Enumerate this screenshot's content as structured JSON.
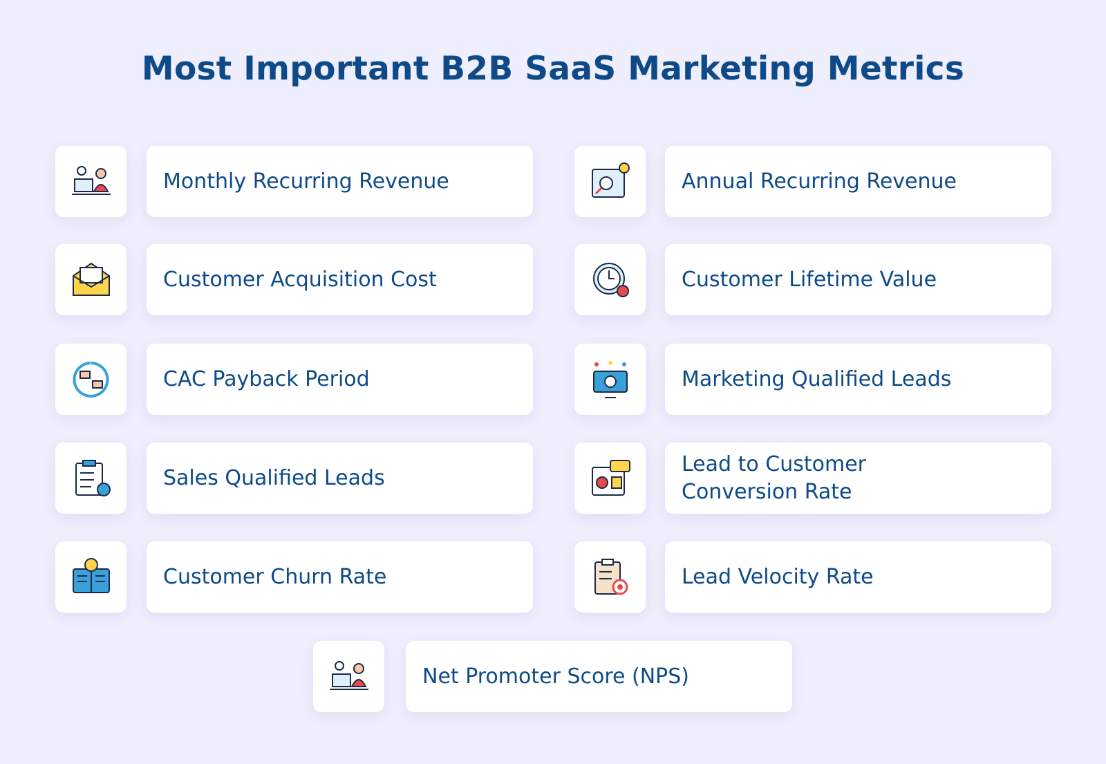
{
  "header": {
    "title": "Most Important B2B SaaS Marketing Metrics"
  },
  "items": [
    {
      "lines": [
        "Monthly Recurring Revenue"
      ]
    },
    {
      "lines": [
        "Annual Recurring Revenue"
      ]
    },
    {
      "lines": [
        "Customer Acquisition Cost"
      ]
    },
    {
      "lines": [
        "Customer Lifetime Value"
      ]
    },
    {
      "lines": [
        "CAC Payback Period"
      ]
    },
    {
      "lines": [
        "Marketing Qualified Leads"
      ]
    },
    {
      "lines": [
        "Sales Qualified Leads"
      ]
    },
    {
      "lines": [
        "Lead to Customer",
        "Conversion Rate"
      ]
    },
    {
      "lines": [
        "Customer Churn Rate"
      ]
    },
    {
      "lines": [
        "Lead Velocity Rate"
      ]
    },
    {
      "lines": [
        "Net Promoter Score (NPS)"
      ]
    }
  ]
}
